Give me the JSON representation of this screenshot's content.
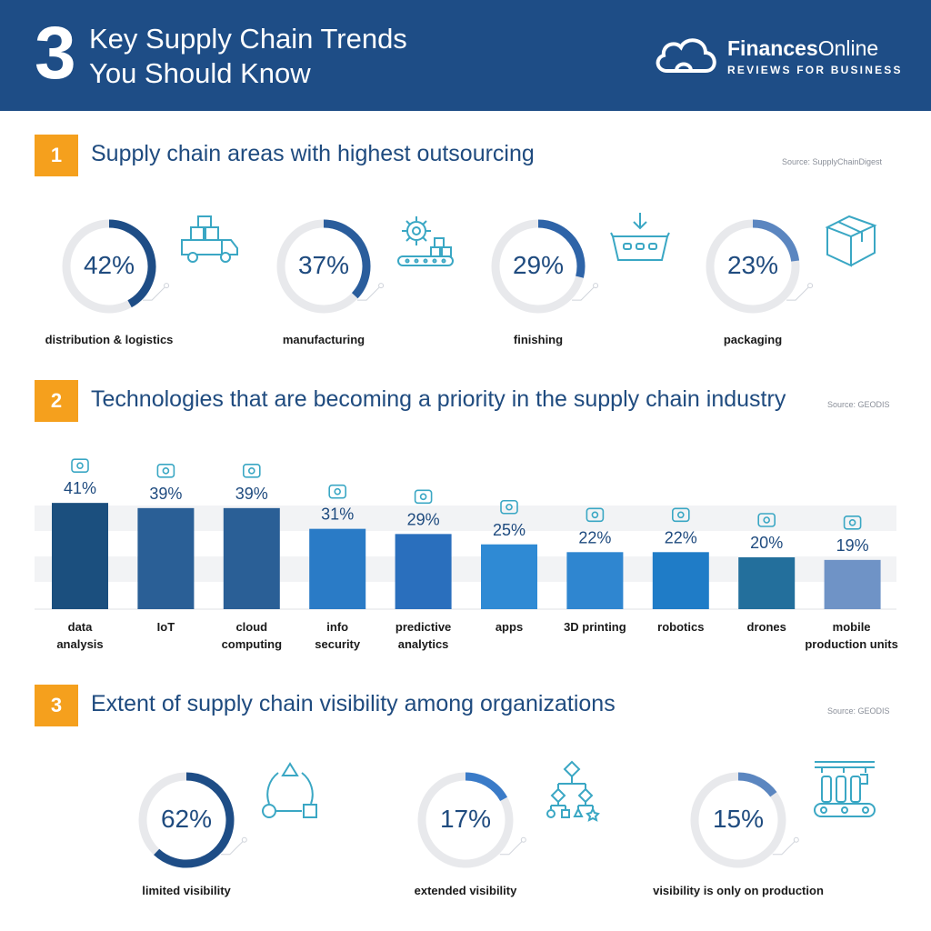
{
  "header": {
    "number": "3",
    "title_line1": "Key Supply Chain Trends",
    "title_line2": "You Should Know",
    "brand_bold": "Finances",
    "brand_light": "Online",
    "tagline": "REVIEWS FOR BUSINESS",
    "colors": {
      "background": "#1e4d86",
      "accent": "#f5a01d"
    }
  },
  "section1": {
    "number": "1",
    "title": "Supply chain areas with highest outsourcing",
    "source": "Source:  SupplyChainDigest",
    "items": [
      {
        "value": 42,
        "display": "42%",
        "label": "distribution & logistics",
        "icon": "delivery-truck-icon",
        "color": "#1e4d86"
      },
      {
        "value": 37,
        "display": "37%",
        "label": "manufacturing",
        "icon": "gear-conveyor-icon",
        "color": "#2a5d9c"
      },
      {
        "value": 29,
        "display": "29%",
        "label": "finishing",
        "icon": "basket-icon",
        "color": "#2e64a8"
      },
      {
        "value": 23,
        "display": "23%",
        "label": "packaging",
        "icon": "box-icon",
        "color": "#5b86c0"
      }
    ]
  },
  "section2": {
    "number": "2",
    "title": "Technologies that are becoming a priority in the supply chain industry",
    "source": "Source: GEODIS"
  },
  "chart_data": {
    "type": "bar",
    "title": "Technologies that are becoming a priority in the supply chain industry",
    "categories": [
      "data analysis",
      "IoT",
      "cloud computing",
      "info security",
      "predictive analytics",
      "apps",
      "3D printing",
      "robotics",
      "drones",
      "mobile production units"
    ],
    "label_lines": [
      [
        "data",
        "analysis"
      ],
      [
        "IoT"
      ],
      [
        "cloud",
        "computing"
      ],
      [
        "info",
        "security"
      ],
      [
        "predictive",
        "analytics"
      ],
      [
        "apps"
      ],
      [
        "3D printing"
      ],
      [
        "robotics"
      ],
      [
        "drones"
      ],
      [
        "mobile",
        "production units"
      ]
    ],
    "values": [
      41,
      39,
      39,
      31,
      29,
      25,
      22,
      22,
      20,
      19
    ],
    "value_labels": [
      "41%",
      "39%",
      "39%",
      "31%",
      "29%",
      "25%",
      "22%",
      "22%",
      "20%",
      "19%"
    ],
    "icons": [
      "magnifier-chart-icon",
      "iot-robot-icon",
      "cloud-network-icon",
      "padlock-icon",
      "analytics-screen-icon",
      "app-phone-icon",
      "printer-3d-icon",
      "robot-arm-icon",
      "drone-icon",
      "production-line-icon"
    ],
    "colors": [
      "#1b4f7e",
      "#2a5f96",
      "#2a5f96",
      "#2a7bc6",
      "#2a6fbd",
      "#2f8ad4",
      "#2f86d0",
      "#1f7cc7",
      "#236f9c",
      "#6f93c6"
    ],
    "ylim": [
      0,
      45
    ],
    "grid": false,
    "xlabel": "",
    "ylabel": ""
  },
  "section3": {
    "number": "3",
    "title": "Extent of supply chain visibility among organizations",
    "source": "Source: GEODIS",
    "items": [
      {
        "value": 62,
        "display": "62%",
        "label": "limited visibility",
        "icon": "shapes-cycle-icon",
        "color": "#1e4d86"
      },
      {
        "value": 17,
        "display": "17%",
        "label": "extended visibility",
        "icon": "hierarchy-icon",
        "color": "#3a7bc8"
      },
      {
        "value": 15,
        "display": "15%",
        "label": "visibility is only on production",
        "icon": "bottling-line-icon",
        "color": "#5b86c0"
      }
    ]
  }
}
